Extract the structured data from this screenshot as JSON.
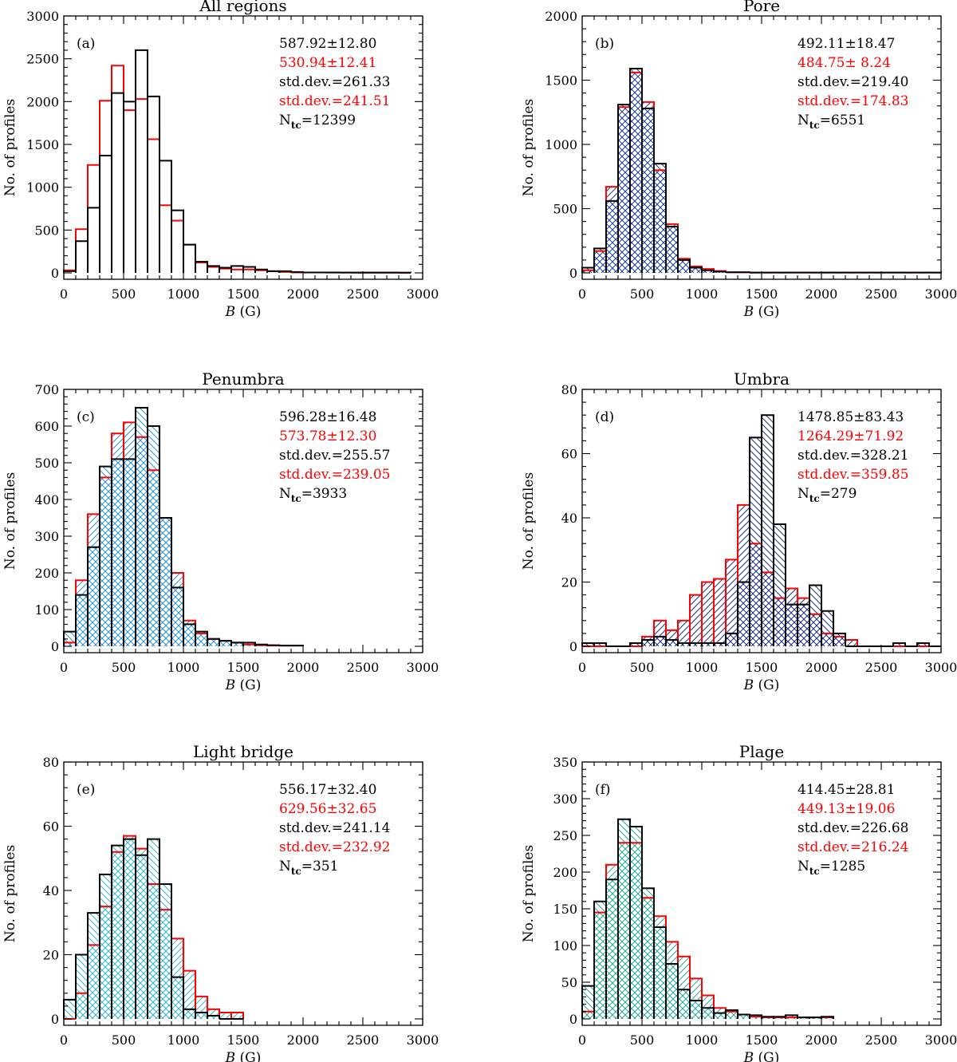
{
  "figure": {
    "black": "#000000",
    "red": "#ff0000"
  },
  "chart_data": [
    {
      "type": "bar",
      "panel": "(a)",
      "title": "All regions",
      "xlabel_var": "B",
      "xlabel_unit": "(G)",
      "ylabel": "No. of profiles",
      "xlim": [
        0,
        3000
      ],
      "ylim": [
        0,
        3000
      ],
      "xticks": [
        0,
        500,
        1000,
        1500,
        2000,
        2500,
        3000
      ],
      "yticks": [
        0,
        500,
        1000,
        1500,
        2000,
        2500,
        3000
      ],
      "bin_width": 100,
      "series": [
        {
          "name": "black",
          "color": "#000000",
          "values": [
            20,
            370,
            760,
            1370,
            2100,
            2000,
            2600,
            2060,
            1310,
            730,
            330,
            130,
            80,
            60,
            80,
            70,
            40,
            20,
            20,
            10,
            5,
            5,
            5,
            3,
            3,
            3,
            3,
            3,
            2
          ]
        },
        {
          "name": "red",
          "color": "#ff0000",
          "values": [
            30,
            510,
            1260,
            2010,
            2420,
            1900,
            2030,
            1560,
            790,
            610,
            330,
            120,
            70,
            50,
            40,
            40,
            30,
            20,
            10,
            5,
            5,
            5,
            3,
            3,
            2,
            2,
            2,
            2,
            2
          ]
        }
      ],
      "fill": null,
      "stats": [
        {
          "text": "587.92±12.80",
          "color": "#000000"
        },
        {
          "text": "530.94±12.41",
          "color": "#ff0000"
        },
        {
          "text": "std.dev.=261.33",
          "color": "#000000"
        },
        {
          "text": "std.dev.=241.51",
          "color": "#ff0000"
        }
      ],
      "ntc": {
        "label": "N",
        "sub": "tc",
        "value": "=12399"
      }
    },
    {
      "type": "bar",
      "panel": "(b)",
      "title": "Pore",
      "xlabel_var": "B",
      "xlabel_unit": "(G)",
      "ylabel": "No. of profiles",
      "xlim": [
        0,
        3000
      ],
      "ylim": [
        0,
        2000
      ],
      "xticks": [
        0,
        500,
        1000,
        1500,
        2000,
        2500,
        3000
      ],
      "yticks": [
        0,
        500,
        1000,
        1500,
        2000
      ],
      "bin_width": 100,
      "series": [
        {
          "name": "black",
          "color": "#000000",
          "values": [
            40,
            190,
            560,
            1310,
            1590,
            1280,
            850,
            360,
            100,
            40,
            20,
            10,
            5,
            5,
            2,
            2,
            2,
            2,
            2,
            2,
            2,
            2,
            2,
            2,
            2,
            2,
            2,
            2,
            2,
            2
          ]
        },
        {
          "name": "red",
          "color": "#ff0000",
          "values": [
            20,
            170,
            670,
            1290,
            1560,
            1330,
            800,
            380,
            110,
            50,
            30,
            15,
            5,
            5,
            2,
            2,
            2,
            2,
            2,
            2,
            2,
            2,
            2,
            2,
            2,
            2,
            2,
            2,
            2,
            2
          ]
        }
      ],
      "fill": "#1c3f94",
      "stats": [
        {
          "text": "492.11±18.47",
          "color": "#000000"
        },
        {
          "text": "484.75± 8.24",
          "color": "#ff0000"
        },
        {
          "text": "std.dev.=219.40",
          "color": "#000000"
        },
        {
          "text": "std.dev.=174.83",
          "color": "#ff0000"
        }
      ],
      "ntc": {
        "label": "N",
        "sub": "tc",
        "value": "=6551"
      }
    },
    {
      "type": "bar",
      "panel": "(c)",
      "title": "Penumbra",
      "xlabel_var": "B",
      "xlabel_unit": "(G)",
      "ylabel": "No. of profiles",
      "xlim": [
        0,
        3000
      ],
      "ylim": [
        0,
        700
      ],
      "xticks": [
        0,
        500,
        1000,
        1500,
        2000,
        2500,
        3000
      ],
      "yticks": [
        0,
        100,
        200,
        300,
        400,
        500,
        600,
        700
      ],
      "bin_width": 100,
      "series": [
        {
          "name": "black",
          "color": "#000000",
          "values": [
            40,
            140,
            270,
            490,
            510,
            510,
            650,
            600,
            350,
            160,
            60,
            40,
            20,
            15,
            10,
            10,
            5,
            3,
            2,
            2
          ]
        },
        {
          "name": "red",
          "color": "#ff0000",
          "values": [
            10,
            180,
            360,
            460,
            580,
            610,
            570,
            480,
            350,
            200,
            70,
            35,
            20,
            15,
            10,
            5,
            3,
            2,
            2,
            2
          ]
        }
      ],
      "fill": "#2b8fcf",
      "stats": [
        {
          "text": "596.28±16.48",
          "color": "#000000"
        },
        {
          "text": "573.78±12.30",
          "color": "#ff0000"
        },
        {
          "text": "std.dev.=255.57",
          "color": "#000000"
        },
        {
          "text": "std.dev.=239.05",
          "color": "#ff0000"
        }
      ],
      "ntc": {
        "label": "N",
        "sub": "tc",
        "value": "=3933"
      }
    },
    {
      "type": "bar",
      "panel": "(d)",
      "title": "Umbra",
      "xlabel_var": "B",
      "xlabel_unit": "(G)",
      "ylabel": "No. of profiles",
      "xlim": [
        0,
        3000
      ],
      "ylim": [
        0,
        80
      ],
      "xticks": [
        0,
        500,
        1000,
        1500,
        2000,
        2500,
        3000
      ],
      "yticks": [
        0,
        20,
        40,
        60,
        80
      ],
      "bin_width": 100,
      "series": [
        {
          "name": "black",
          "color": "#000000",
          "values": [
            1,
            1,
            0,
            0,
            1,
            2,
            3,
            2,
            1,
            1,
            1,
            1,
            4,
            20,
            65,
            72,
            38,
            13,
            13,
            19,
            11,
            4,
            0,
            0,
            0,
            0,
            1,
            0,
            1,
            0
          ]
        },
        {
          "name": "red",
          "color": "#ff0000",
          "values": [
            0,
            0,
            0,
            0,
            0,
            3,
            8,
            5,
            8,
            16,
            20,
            21,
            27,
            44,
            32,
            23,
            15,
            18,
            15,
            10,
            4,
            3,
            2,
            0,
            0,
            0,
            0,
            0,
            0,
            0
          ]
        }
      ],
      "fill": "#1a2f7a",
      "stats": [
        {
          "text": "1478.85±83.43",
          "color": "#000000"
        },
        {
          "text": "1264.29±71.92",
          "color": "#ff0000"
        },
        {
          "text": "std.dev.=328.21",
          "color": "#000000"
        },
        {
          "text": "std.dev.=359.85",
          "color": "#ff0000"
        }
      ],
      "ntc": {
        "label": "N",
        "sub": "tc",
        "value": "=279"
      }
    },
    {
      "type": "bar",
      "panel": "(e)",
      "title": "Light bridge",
      "xlabel_var": "B",
      "xlabel_unit": "(G)",
      "ylabel": "No. of profiles",
      "xlim": [
        0,
        3000
      ],
      "ylim": [
        0,
        80
      ],
      "xticks": [
        0,
        500,
        1000,
        1500,
        2000,
        2500,
        3000
      ],
      "yticks": [
        0,
        20,
        40,
        60,
        80
      ],
      "bin_width": 100,
      "series": [
        {
          "name": "black",
          "color": "#000000",
          "values": [
            6,
            20,
            33,
            45,
            54,
            56,
            51,
            56,
            42,
            13,
            3,
            2,
            1,
            0,
            0
          ]
        },
        {
          "name": "red",
          "color": "#ff0000",
          "values": [
            0,
            8,
            23,
            35,
            52,
            57,
            53,
            42,
            34,
            25,
            15,
            7,
            3,
            2,
            2
          ]
        }
      ],
      "fill": "#35b2c4",
      "stats": [
        {
          "text": "556.17±32.40",
          "color": "#000000"
        },
        {
          "text": "629.56±32.65",
          "color": "#ff0000"
        },
        {
          "text": "std.dev.=241.14",
          "color": "#000000"
        },
        {
          "text": "std.dev.=232.92",
          "color": "#ff0000"
        }
      ],
      "ntc": {
        "label": "N",
        "sub": "tc",
        "value": "=351"
      }
    },
    {
      "type": "bar",
      "panel": "(f)",
      "title": "Plage",
      "xlabel_var": "B",
      "xlabel_unit": "(G)",
      "ylabel": "No. of profiles",
      "xlim": [
        0,
        3000
      ],
      "ylim": [
        0,
        350
      ],
      "xticks": [
        0,
        500,
        1000,
        1500,
        2000,
        2500,
        3000
      ],
      "yticks": [
        0,
        50,
        100,
        150,
        200,
        250,
        300,
        350
      ],
      "bin_width": 100,
      "series": [
        {
          "name": "black",
          "color": "#000000",
          "values": [
            45,
            160,
            190,
            272,
            262,
            178,
            125,
            75,
            40,
            25,
            15,
            8,
            12,
            6,
            5,
            3,
            3,
            5,
            2,
            2,
            3
          ]
        },
        {
          "name": "red",
          "color": "#ff0000",
          "values": [
            10,
            145,
            210,
            240,
            240,
            165,
            140,
            105,
            85,
            55,
            32,
            15,
            10,
            6,
            3,
            2,
            2,
            2,
            2,
            2,
            2
          ]
        }
      ],
      "fill": "#2aa49b",
      "stats": [
        {
          "text": "414.45±28.81",
          "color": "#000000"
        },
        {
          "text": "449.13±19.06",
          "color": "#ff0000"
        },
        {
          "text": "std.dev.=226.68",
          "color": "#000000"
        },
        {
          "text": "std.dev.=216.24",
          "color": "#ff0000"
        }
      ],
      "ntc": {
        "label": "N",
        "sub": "tc",
        "value": "=1285"
      }
    }
  ]
}
